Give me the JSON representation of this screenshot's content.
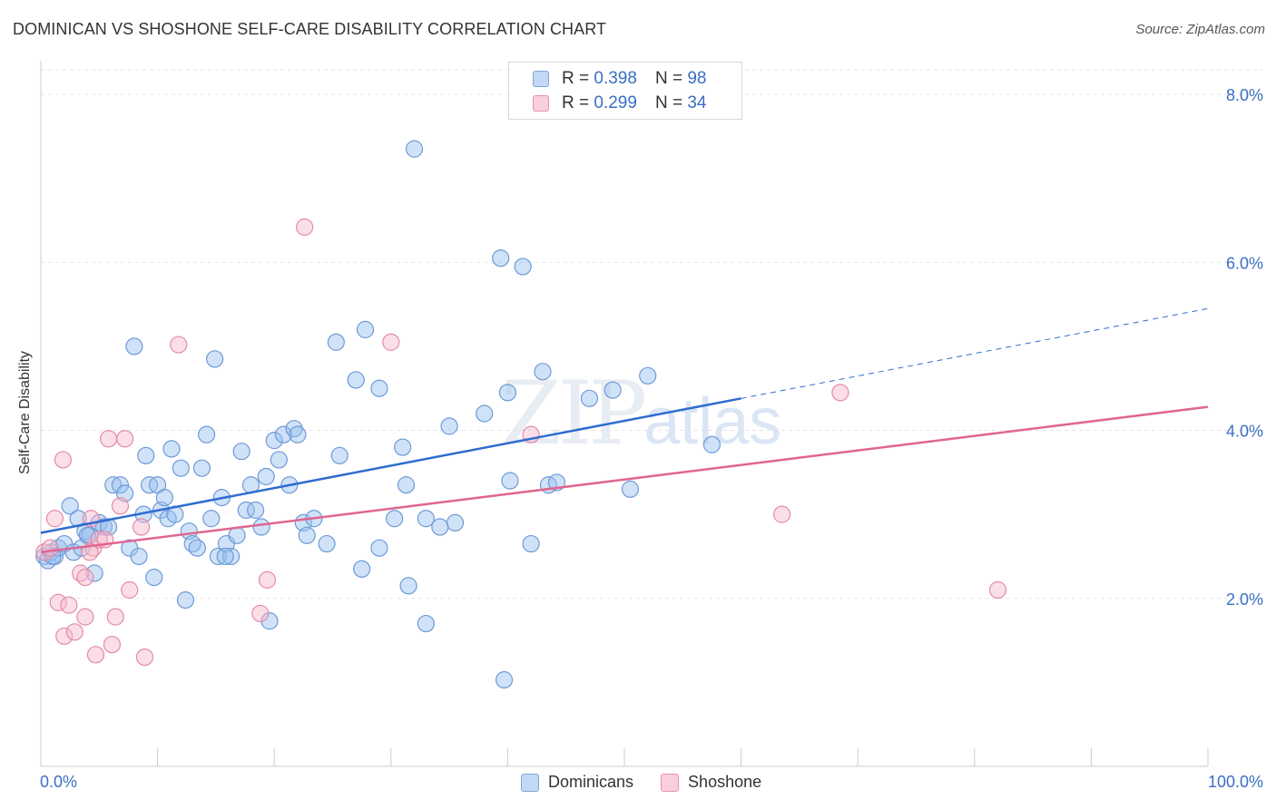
{
  "header": {
    "title": "DOMINICAN VS SHOSHONE SELF-CARE DISABILITY CORRELATION CHART",
    "source": "Source: ZipAtlas.com"
  },
  "watermark": {
    "zip": "ZIP",
    "atlas": "atlas"
  },
  "legend_top": {
    "rows": [
      {
        "r_label": "R = ",
        "r_value": "0.398",
        "n_label": "N = ",
        "n_value": "98",
        "color": "#aac8ef"
      },
      {
        "r_label": "R = ",
        "r_value": "0.299",
        "n_label": "N = ",
        "n_value": "34",
        "color": "#f6b7ca"
      }
    ]
  },
  "legend_bottom": {
    "items": [
      {
        "label": "Dominicans",
        "color": "#aac8ef"
      },
      {
        "label": "Shoshone",
        "color": "#f6b7ca"
      }
    ]
  },
  "colors": {
    "blue_fill": "rgba(150,190,240,0.45)",
    "blue_stroke": "#6e9ad6",
    "blue_line": "#2f6ccf",
    "pink_fill": "rgba(246,183,202,0.45)",
    "pink_stroke": "#e48aa8",
    "pink_line": "#e0668f",
    "tick_text": "#3a6fc4",
    "grid": "#e3e3e3"
  },
  "chart_data": {
    "type": "scatter",
    "title": "DOMINICAN VS SHOSHONE SELF-CARE DISABILITY CORRELATION CHART",
    "xlabel": "",
    "ylabel": "Self-Care Disability",
    "xlim": [
      0,
      100
    ],
    "ylim": [
      0,
      8.4
    ],
    "x_tick_labels": [
      "0.0%",
      "100.0%"
    ],
    "y_ticks": [
      2.0,
      4.0,
      6.0,
      8.0
    ],
    "y_tick_labels": [
      "2.0%",
      "4.0%",
      "6.0%",
      "8.0%"
    ],
    "grid": true,
    "legend_position": "top-center",
    "series": [
      {
        "name": "Dominicans",
        "points": [
          [
            0.3,
            2.5
          ],
          [
            0.6,
            2.45
          ],
          [
            0.9,
            2.55
          ],
          [
            1.2,
            2.5
          ],
          [
            1.5,
            2.6
          ],
          [
            2.0,
            2.65
          ],
          [
            2.5,
            3.1
          ],
          [
            2.8,
            2.55
          ],
          [
            3.2,
            2.95
          ],
          [
            3.5,
            2.6
          ],
          [
            3.8,
            2.8
          ],
          [
            4.2,
            2.75
          ],
          [
            4.6,
            2.3
          ],
          [
            5.0,
            2.9
          ],
          [
            5.4,
            2.85
          ],
          [
            5.8,
            2.85
          ],
          [
            6.2,
            3.35
          ],
          [
            6.8,
            3.35
          ],
          [
            7.2,
            3.25
          ],
          [
            7.6,
            2.6
          ],
          [
            8.0,
            5.0
          ],
          [
            8.4,
            2.5
          ],
          [
            8.8,
            3.0
          ],
          [
            9.0,
            3.7
          ],
          [
            9.3,
            3.35
          ],
          [
            9.7,
            2.25
          ],
          [
            10.0,
            3.35
          ],
          [
            10.3,
            3.05
          ],
          [
            10.6,
            3.2
          ],
          [
            10.9,
            2.95
          ],
          [
            11.2,
            3.78
          ],
          [
            11.5,
            3.0
          ],
          [
            12.0,
            3.55
          ],
          [
            12.4,
            1.98
          ],
          [
            12.7,
            2.8
          ],
          [
            13.0,
            2.65
          ],
          [
            13.4,
            2.6
          ],
          [
            13.8,
            3.55
          ],
          [
            14.2,
            3.95
          ],
          [
            14.6,
            2.95
          ],
          [
            14.9,
            4.85
          ],
          [
            15.2,
            2.5
          ],
          [
            15.5,
            3.2
          ],
          [
            15.9,
            2.65
          ],
          [
            16.3,
            2.5
          ],
          [
            16.8,
            2.75
          ],
          [
            17.2,
            3.75
          ],
          [
            17.6,
            3.05
          ],
          [
            18.0,
            3.35
          ],
          [
            18.4,
            3.05
          ],
          [
            18.9,
            2.85
          ],
          [
            19.3,
            3.45
          ],
          [
            19.6,
            1.73
          ],
          [
            20.0,
            3.88
          ],
          [
            20.4,
            3.65
          ],
          [
            20.8,
            3.95
          ],
          [
            21.3,
            3.35
          ],
          [
            21.7,
            4.02
          ],
          [
            22.0,
            3.95
          ],
          [
            22.5,
            2.9
          ],
          [
            22.8,
            2.75
          ],
          [
            23.4,
            2.95
          ],
          [
            24.5,
            2.65
          ],
          [
            25.3,
            5.05
          ],
          [
            25.6,
            3.7
          ],
          [
            27.0,
            4.6
          ],
          [
            27.5,
            2.35
          ],
          [
            27.8,
            5.2
          ],
          [
            29.0,
            4.5
          ],
          [
            29.0,
            2.6
          ],
          [
            30.3,
            2.95
          ],
          [
            31.0,
            3.8
          ],
          [
            31.3,
            3.35
          ],
          [
            31.5,
            2.15
          ],
          [
            32.0,
            7.35
          ],
          [
            33.0,
            1.7
          ],
          [
            33.0,
            2.95
          ],
          [
            34.2,
            2.85
          ],
          [
            35.0,
            4.05
          ],
          [
            35.5,
            2.9
          ],
          [
            38.0,
            4.2
          ],
          [
            39.4,
            6.05
          ],
          [
            39.7,
            1.03
          ],
          [
            40.0,
            4.45
          ],
          [
            40.2,
            3.4
          ],
          [
            41.3,
            5.95
          ],
          [
            42.0,
            2.65
          ],
          [
            43.0,
            4.7
          ],
          [
            43.5,
            3.35
          ],
          [
            44.2,
            3.38
          ],
          [
            47.0,
            4.38
          ],
          [
            49.0,
            4.48
          ],
          [
            50.5,
            3.3
          ],
          [
            52.0,
            4.65
          ],
          [
            57.5,
            3.83
          ],
          [
            15.8,
            2.5
          ],
          [
            4.0,
            2.75
          ],
          [
            1.0,
            2.5
          ]
        ]
      },
      {
        "name": "Shoshone",
        "points": [
          [
            0.3,
            2.55
          ],
          [
            0.8,
            2.6
          ],
          [
            1.2,
            2.95
          ],
          [
            1.5,
            1.95
          ],
          [
            1.9,
            3.65
          ],
          [
            2.0,
            1.55
          ],
          [
            2.4,
            1.92
          ],
          [
            2.9,
            1.6
          ],
          [
            3.4,
            2.3
          ],
          [
            3.8,
            2.25
          ],
          [
            3.8,
            1.78
          ],
          [
            4.3,
            2.95
          ],
          [
            4.5,
            2.6
          ],
          [
            4.7,
            1.33
          ],
          [
            5.0,
            2.7
          ],
          [
            5.5,
            2.7
          ],
          [
            5.8,
            3.9
          ],
          [
            6.1,
            1.45
          ],
          [
            6.4,
            1.78
          ],
          [
            6.8,
            3.1
          ],
          [
            7.2,
            3.9
          ],
          [
            7.6,
            2.1
          ],
          [
            8.6,
            2.85
          ],
          [
            8.9,
            1.3
          ],
          [
            11.8,
            5.02
          ],
          [
            18.8,
            1.82
          ],
          [
            19.4,
            2.22
          ],
          [
            22.6,
            6.42
          ],
          [
            30.0,
            5.05
          ],
          [
            42.0,
            3.95
          ],
          [
            63.5,
            3.0
          ],
          [
            68.5,
            4.45
          ],
          [
            82.0,
            2.1
          ],
          [
            4.2,
            2.55
          ]
        ]
      }
    ],
    "trendlines": [
      {
        "series": "Dominicans",
        "x": [
          0,
          60
        ],
        "y": [
          2.78,
          4.38
        ],
        "dashed_extension": {
          "x": [
            60,
            100
          ],
          "y": [
            4.38,
            5.45
          ]
        }
      },
      {
        "series": "Shoshone",
        "x": [
          0,
          100
        ],
        "y": [
          2.55,
          4.28
        ]
      }
    ]
  }
}
